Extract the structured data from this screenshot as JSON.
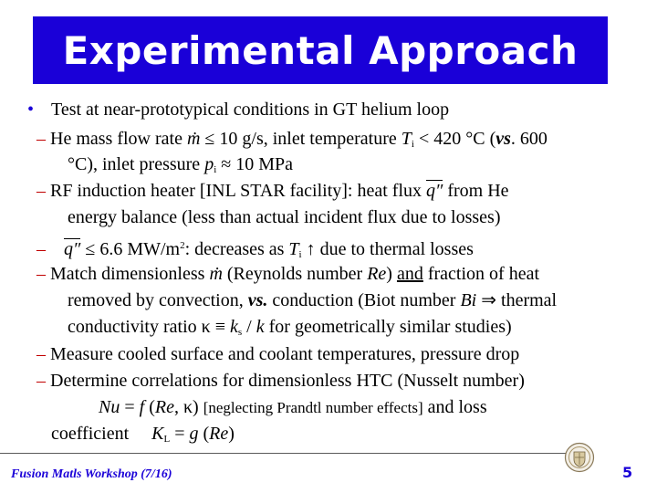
{
  "title": "Experimental Approach",
  "bullet_glyph": "•",
  "main_bullet": "Test at near-prototypical conditions in GT helium loop",
  "l1": {
    "dash": "–",
    "a": " He mass flow rate ",
    "mdot": "ṁ",
    "b": " ≤ 10 g/s, inlet temperature ",
    "T": "T",
    "sub_i": "i",
    "c": " < 420 °C (",
    "vs": "vs",
    "d": ". 600"
  },
  "l2": {
    "a": "°C), inlet pressure ",
    "p": "p",
    "sub_i": "i",
    "b": " ≈ 10 MPa"
  },
  "l3": {
    "dash": "–",
    "a": " RF induction heater [INL STAR facility]:   heat flux ",
    "q": "q″",
    "b": " from He"
  },
  "l4": {
    "text": "energy balance (less than actual incident flux due to losses)"
  },
  "l5": {
    "dash": "–",
    "q": "q″",
    "a": " ≤ 6.6  MW/m",
    "sup": "2",
    "b": ":  decreases as ",
    "T": "T",
    "sub_i": "i",
    "c": " ↑ due to thermal losses"
  },
  "l6": {
    "dash": "–",
    "a": " Match dimensionless ",
    "mdot": "ṁ",
    "b": " (Reynolds number ",
    "Re": "Re",
    "c": ") ",
    "and": "and",
    "d": " fraction of heat"
  },
  "l7": {
    "a": "removed by convection, ",
    "vs": "vs.",
    "b": " conduction (Biot number ",
    "Bi": "Bi",
    "c": " ⇒ thermal"
  },
  "l8": {
    "a": "conductivity ratio κ ≡ ",
    "k": "k",
    "sub_s": "s",
    "slash": " / ",
    "k2": "k",
    "b": "  for geometrically similar studies)"
  },
  "l9": {
    "dash": "–",
    "text": " Measure cooled surface and coolant temperatures, pressure drop"
  },
  "l10": {
    "dash": "–",
    "text": " Determine correlations for dimensionless HTC (Nusselt number)"
  },
  "l11": {
    "Nu": "Nu",
    "a": " = ",
    "f": "f",
    "b": " (",
    "Re": "Re",
    "c": ", κ) ",
    "small": "[neglecting Prandtl number effects]",
    "d": " and loss"
  },
  "l12": {
    "a": "coefficient     ",
    "K": "K",
    "sub_L": "L",
    "b": " = ",
    "g": "g",
    "c": " (",
    "Re": "Re",
    "d": ")"
  },
  "footer": "Fusion Matls Workshop (7/16)",
  "page_number": "5",
  "colors": {
    "accent": "#1a00d8",
    "dash": "#c00000"
  },
  "seal_icon": "university-seal-icon"
}
